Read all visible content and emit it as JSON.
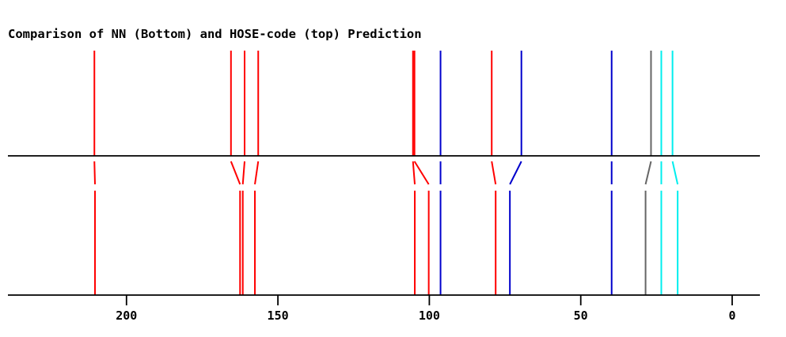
{
  "chart_data": {
    "type": "line",
    "title": "Comparison of NN (Bottom) and HOSE-code (top) Prediction",
    "xlabel": "",
    "ylabel": "",
    "x_axis_reversed": true,
    "xlim": [
      239,
      -9
    ],
    "xticks": [
      200,
      150,
      100,
      50,
      0
    ],
    "grid": false,
    "legend": "none",
    "series": [
      {
        "top": 210.6,
        "bottom": 210.4,
        "color": "#ff0000"
      },
      {
        "top": 165.5,
        "bottom": 162.5,
        "color": "#ff0000"
      },
      {
        "top": 161.0,
        "bottom": 161.6,
        "color": "#ff0000"
      },
      {
        "top": 156.5,
        "bottom": 157.6,
        "color": "#ff0000"
      },
      {
        "top": 105.4,
        "bottom": 104.8,
        "color": "#ff0000"
      },
      {
        "top": 104.9,
        "bottom": 100.2,
        "color": "#ff0000"
      },
      {
        "top": 96.3,
        "bottom": 96.3,
        "color": "#0000cc"
      },
      {
        "top": 79.4,
        "bottom": 78.1,
        "color": "#ff0000"
      },
      {
        "top": 69.6,
        "bottom": 73.4,
        "color": "#0000cc"
      },
      {
        "top": 39.8,
        "bottom": 39.8,
        "color": "#0000cc"
      },
      {
        "top": 26.8,
        "bottom": 28.6,
        "color": "#666666"
      },
      {
        "top": 23.4,
        "bottom": 23.4,
        "color": "#00eeee"
      },
      {
        "top": 19.7,
        "bottom": 18.0,
        "color": "#00eeee"
      }
    ]
  }
}
